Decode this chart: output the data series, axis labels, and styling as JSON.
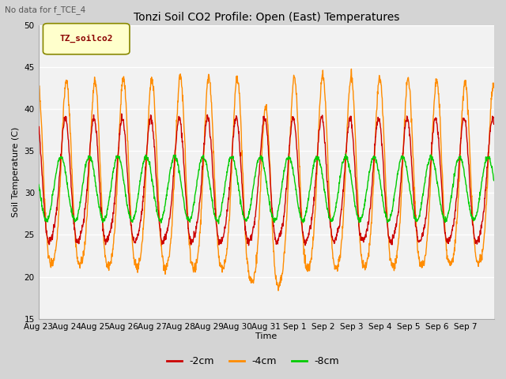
{
  "title": "Tonzi Soil CO2 Profile: Open (East) Temperatures",
  "subtitle": "No data for f_TCE_4",
  "ylabel": "Soil Temperature (C)",
  "xlabel": "Time",
  "ylim": [
    15,
    50
  ],
  "yticks": [
    15,
    20,
    25,
    30,
    35,
    40,
    45,
    50
  ],
  "fig_bg_color": "#d4d4d4",
  "plot_bg_color": "#f2f2f2",
  "line_colors": {
    "-2cm": "#cc0000",
    "-4cm": "#ff8c00",
    "-8cm": "#00cc00"
  },
  "line_widths": {
    "-2cm": 1.0,
    "-4cm": 1.0,
    "-8cm": 1.0
  },
  "legend_label": "TZ_soilco2",
  "legend_text_color": "#8b0000",
  "legend_box_facecolor": "#ffffcc",
  "legend_box_edgecolor": "#888800",
  "tick_labels": [
    "Aug 23",
    "Aug 24",
    "Aug 25",
    "Aug 26",
    "Aug 27",
    "Aug 28",
    "Aug 29",
    "Aug 30",
    "Aug 31",
    "Sep 1",
    "Sep 2",
    "Sep 3",
    "Sep 4",
    "Sep 5",
    "Sep 6",
    "Sep 7"
  ],
  "n_days": 16,
  "points_per_day": 96
}
